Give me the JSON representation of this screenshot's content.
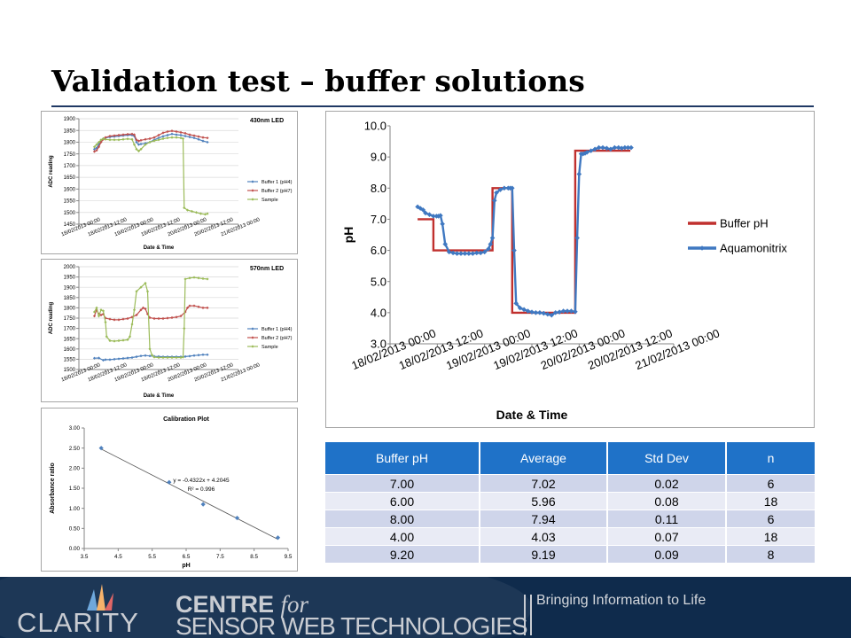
{
  "slide": {
    "title": "Validation test – buffer solutions"
  },
  "colors": {
    "buffer1": "#4f81bd",
    "buffer2": "#c0504d",
    "sample": "#9bbb59",
    "bufferPh": "#c0302e",
    "aquamonitrix": "#3f78c1",
    "header": "#1f72c8",
    "footer": "#0f2b4c"
  },
  "chart_data": [
    {
      "type": "line",
      "title": "430nm LED",
      "xlabel": "Date & Time",
      "ylabel": "ADC reading",
      "xlim": [
        0,
        72
      ],
      "ylim": [
        1450,
        1900
      ],
      "yticks": [
        "1450",
        "1500",
        "1550",
        "1600",
        "1650",
        "1700",
        "1750",
        "1800",
        "1850",
        "1900"
      ],
      "xticks": [
        {
          "x": 0,
          "label": "18/02/2013 00:00"
        },
        {
          "x": 12,
          "label": "18/02/2013 12:00"
        },
        {
          "x": 24,
          "label": "19/02/2013 00:00"
        },
        {
          "x": 36,
          "label": "19/02/2013 12:00"
        },
        {
          "x": 48,
          "label": "20/02/2013 00:00"
        },
        {
          "x": 60,
          "label": "20/02/2013 12:00"
        },
        {
          "x": 72,
          "label": "21/02/2013 00:00"
        }
      ],
      "legend_position": "right",
      "series": [
        {
          "name": "Buffer 1 (pH4)",
          "x": [
            7,
            8,
            9,
            10,
            11,
            12,
            14,
            16,
            18,
            20,
            22,
            24,
            25,
            26,
            27,
            28,
            30,
            32,
            34,
            36,
            38,
            40,
            42,
            44,
            46,
            48,
            50,
            52,
            54,
            56,
            58
          ],
          "y": [
            1770,
            1775,
            1790,
            1805,
            1815,
            1818,
            1822,
            1824,
            1826,
            1828,
            1830,
            1830,
            1826,
            1800,
            1790,
            1792,
            1795,
            1800,
            1810,
            1818,
            1825,
            1830,
            1835,
            1832,
            1830,
            1826,
            1822,
            1818,
            1812,
            1805,
            1800
          ]
        },
        {
          "name": "Buffer 2 (pH7)",
          "x": [
            7,
            8,
            9,
            10,
            11,
            12,
            14,
            16,
            18,
            20,
            22,
            24,
            25,
            26,
            27,
            28,
            30,
            32,
            34,
            36,
            38,
            40,
            42,
            44,
            46,
            48,
            50,
            52,
            54,
            56,
            58
          ],
          "y": [
            1760,
            1765,
            1780,
            1800,
            1812,
            1820,
            1826,
            1828,
            1830,
            1832,
            1834,
            1835,
            1832,
            1810,
            1805,
            1808,
            1812,
            1815,
            1820,
            1830,
            1840,
            1845,
            1848,
            1845,
            1842,
            1838,
            1832,
            1828,
            1824,
            1820,
            1818
          ]
        },
        {
          "name": "Sample",
          "x": [
            7,
            8,
            9,
            10,
            11,
            12,
            14,
            16,
            18,
            20,
            22,
            24,
            25,
            26,
            27,
            28,
            30,
            32,
            34,
            36,
            38,
            40,
            42,
            44,
            46,
            47,
            47.5,
            49,
            51,
            53,
            55,
            57,
            58
          ],
          "y": [
            1780,
            1790,
            1800,
            1810,
            1815,
            1812,
            1810,
            1810,
            1810,
            1812,
            1814,
            1812,
            1790,
            1770,
            1762,
            1770,
            1790,
            1800,
            1806,
            1810,
            1815,
            1818,
            1820,
            1820,
            1818,
            1815,
            1520,
            1510,
            1505,
            1500,
            1495,
            1492,
            1495
          ]
        }
      ]
    },
    {
      "type": "line",
      "title": "570nm LED",
      "xlabel": "Date & Time",
      "ylabel": "ADC reading",
      "xlim": [
        0,
        72
      ],
      "ylim": [
        1500,
        2000
      ],
      "yticks": [
        "1500",
        "1550",
        "1600",
        "1650",
        "1700",
        "1750",
        "1800",
        "1850",
        "1900",
        "1950",
        "2000"
      ],
      "xticks": [
        {
          "x": 0,
          "label": "18/02/2013 00:00"
        },
        {
          "x": 12,
          "label": "18/02/2013 12:00"
        },
        {
          "x": 24,
          "label": "19/02/2013 00:00"
        },
        {
          "x": 36,
          "label": "19/02/2013 12:00"
        },
        {
          "x": 48,
          "label": "20/02/2013 00:00"
        },
        {
          "x": 60,
          "label": "20/02/2013 12:00"
        },
        {
          "x": 72,
          "label": "21/02/2013 00:00"
        }
      ],
      "legend_position": "right",
      "series": [
        {
          "name": "Buffer 1 (pH4)",
          "x": [
            7,
            9,
            11,
            12,
            14,
            16,
            18,
            20,
            22,
            24,
            26,
            28,
            30,
            32,
            34,
            36,
            38,
            40,
            42,
            44,
            46,
            48,
            50,
            52,
            54,
            56,
            58
          ],
          "y": [
            1555,
            1556,
            1545,
            1548,
            1548,
            1550,
            1552,
            1554,
            1556,
            1558,
            1562,
            1566,
            1568,
            1566,
            1564,
            1563,
            1562,
            1562,
            1562,
            1562,
            1562,
            1563,
            1565,
            1568,
            1570,
            1572,
            1572
          ]
        },
        {
          "name": "Buffer 2 (pH7)",
          "x": [
            7,
            8,
            9,
            10,
            11,
            12,
            14,
            16,
            18,
            20,
            22,
            24,
            26,
            28,
            29,
            30,
            31,
            32,
            34,
            36,
            38,
            40,
            42,
            44,
            46,
            48,
            49,
            50,
            52,
            54,
            56,
            58
          ],
          "y": [
            1760,
            1790,
            1770,
            1765,
            1770,
            1750,
            1745,
            1742,
            1742,
            1745,
            1748,
            1755,
            1765,
            1790,
            1800,
            1795,
            1770,
            1752,
            1748,
            1748,
            1748,
            1750,
            1752,
            1755,
            1760,
            1780,
            1800,
            1810,
            1810,
            1805,
            1800,
            1800
          ]
        },
        {
          "name": "Sample",
          "x": [
            7,
            8,
            9,
            10,
            11,
            12,
            12.5,
            14,
            16,
            18,
            20,
            22,
            23,
            24,
            25,
            26,
            28,
            30,
            31,
            32,
            33,
            34,
            36,
            38,
            40,
            42,
            44,
            46,
            47,
            47.5,
            48,
            50,
            52,
            54,
            56,
            58
          ],
          "y": [
            1780,
            1800,
            1760,
            1790,
            1785,
            1730,
            1660,
            1640,
            1638,
            1640,
            1642,
            1645,
            1660,
            1720,
            1790,
            1880,
            1900,
            1920,
            1880,
            1600,
            1570,
            1560,
            1558,
            1558,
            1558,
            1558,
            1558,
            1558,
            1560,
            1700,
            1940,
            1945,
            1948,
            1945,
            1942,
            1940
          ]
        }
      ]
    },
    {
      "type": "scatter",
      "title": "Calibration Plot",
      "xlabel": "pH",
      "ylabel": "Absorbance ratio",
      "xlim": [
        3.5,
        9.5
      ],
      "ylim": [
        0,
        3
      ],
      "xticks": [
        "3.5",
        "4.5",
        "5.5",
        "6.5",
        "7.5",
        "8.5",
        "9.5"
      ],
      "yticks": [
        "0.00",
        "0.50",
        "1.00",
        "1.50",
        "2.00",
        "2.50",
        "3.00"
      ],
      "x": [
        4.0,
        6.0,
        7.0,
        8.0,
        9.2
      ],
      "y": [
        2.5,
        1.65,
        1.1,
        0.76,
        0.27
      ],
      "trendline": {
        "slope": -0.4322,
        "intercept": 4.2045,
        "x_from": 4.0,
        "x_to": 9.2
      },
      "annotations": [
        "y = -0.4322x + 4.2045",
        "R² = 0.996"
      ]
    },
    {
      "type": "line",
      "title": "",
      "xlabel": "Date & Time",
      "ylabel": "pH",
      "xlim": [
        0,
        72
      ],
      "ylim": [
        3.0,
        10.0
      ],
      "yticks": [
        "3.0",
        "4.0",
        "5.0",
        "6.0",
        "7.0",
        "8.0",
        "9.0",
        "10.0"
      ],
      "xticks": [
        {
          "x": 0,
          "label": "18/02/2013 00:00"
        },
        {
          "x": 12,
          "label": "18/02/2013 12:00"
        },
        {
          "x": 24,
          "label": "19/02/2013 00:00"
        },
        {
          "x": 36,
          "label": "19/02/2013 12:00"
        },
        {
          "x": 48,
          "label": "20/02/2013 00:00"
        },
        {
          "x": 60,
          "label": "20/02/2013 12:00"
        },
        {
          "x": 72,
          "label": "21/02/2013 00:00"
        }
      ],
      "legend_position": "right",
      "grid": false,
      "series": [
        {
          "name": "Buffer pH",
          "markers": false,
          "x": [
            7,
            11,
            11,
            26,
            26,
            31,
            31,
            47,
            47,
            57,
            57,
            61
          ],
          "y": [
            7.0,
            7.0,
            6.0,
            6.0,
            8.0,
            8.0,
            4.0,
            4.0,
            9.2,
            9.2,
            9.2,
            9.2
          ]
        },
        {
          "name": "Aquamonitrix",
          "markers": true,
          "x": [
            7,
            7.7,
            8.4,
            9,
            10,
            11,
            11.8,
            12.3,
            12.8,
            13.3,
            14,
            15,
            16,
            17,
            18,
            19,
            20,
            21,
            22,
            23,
            24,
            25,
            25.5,
            26,
            26.5,
            27,
            28,
            29,
            30,
            30.5,
            31,
            31.5,
            32,
            33,
            34,
            35,
            36,
            37,
            38,
            39,
            40,
            41,
            42,
            43,
            44,
            45,
            46,
            47,
            47.5,
            48,
            48.5,
            49,
            49.5,
            50,
            51,
            52,
            53,
            54,
            55,
            56,
            57,
            58,
            58.8,
            59.6,
            60.4,
            61.2
          ],
          "y": [
            7.4,
            7.35,
            7.3,
            7.2,
            7.15,
            7.1,
            7.1,
            7.1,
            7.12,
            6.85,
            6.2,
            5.95,
            5.92,
            5.9,
            5.9,
            5.9,
            5.9,
            5.9,
            5.92,
            5.92,
            5.95,
            6.05,
            6.2,
            6.4,
            7.6,
            7.85,
            7.95,
            8.0,
            8.0,
            8.0,
            8.0,
            6.0,
            4.3,
            4.15,
            4.1,
            4.05,
            4.02,
            4.0,
            4.0,
            3.98,
            3.95,
            3.92,
            4.0,
            4.02,
            4.05,
            4.05,
            4.05,
            4.03,
            6.4,
            8.45,
            9.1,
            9.1,
            9.12,
            9.15,
            9.2,
            9.25,
            9.3,
            9.3,
            9.28,
            9.25,
            9.3,
            9.3,
            9.28,
            9.3,
            9.3,
            9.3
          ]
        }
      ]
    }
  ],
  "table": {
    "headers": [
      "Buffer pH",
      "Average",
      "Std Dev",
      "n"
    ],
    "rows": [
      [
        "7.00",
        "7.02",
        "0.02",
        "6"
      ],
      [
        "6.00",
        "5.96",
        "0.08",
        "18"
      ],
      [
        "8.00",
        "7.94",
        "0.11",
        "6"
      ],
      [
        "4.00",
        "4.03",
        "0.07",
        "18"
      ],
      [
        "9.20",
        "9.19",
        "0.09",
        "8"
      ]
    ]
  },
  "footer": {
    "logo_text": "CLARITY",
    "centre_word": "CENTRE",
    "centre_for": "for",
    "centre_line2": "SENSOR WEB TECHNOLOGIES",
    "tagline": "Bringing Information to Life"
  }
}
